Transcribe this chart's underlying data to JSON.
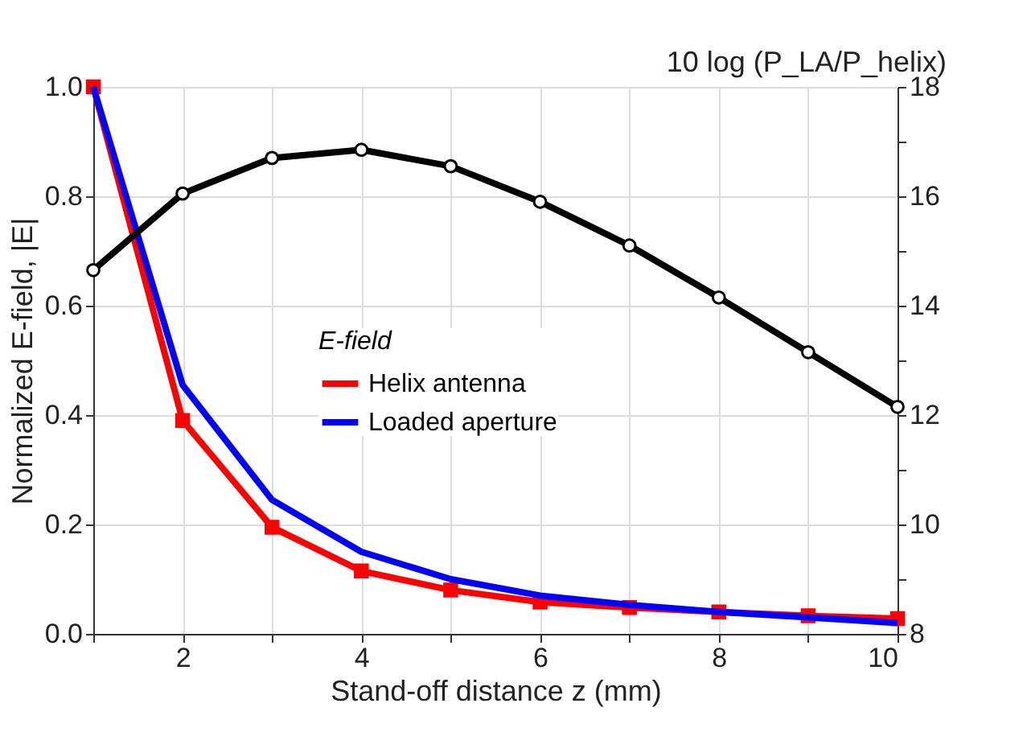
{
  "chart_data": {
    "type": "line",
    "xlabel": "Stand-off distance z (mm)",
    "ylabel": "Normalized E-field, |E|",
    "y2label": "10 log (P_LA/P_helix)",
    "legend_title": "E-field",
    "x": [
      1,
      2,
      3,
      4,
      5,
      6,
      7,
      8,
      9,
      10
    ],
    "series": [
      {
        "name": "Helix antenna",
        "color": "#ff0000",
        "marker": "square",
        "values": [
          1.0,
          0.39,
          0.195,
          0.115,
          0.08,
          0.058,
          0.048,
          0.04,
          0.033,
          0.028
        ]
      },
      {
        "name": "Loaded aperture",
        "color": "#0000ff",
        "marker": "none",
        "values": [
          1.0,
          0.455,
          0.245,
          0.15,
          0.1,
          0.07,
          0.053,
          0.04,
          0.03,
          0.02
        ]
      },
      {
        "color": "#000000",
        "marker": "circle",
        "axis": "y2",
        "values": [
          14.65,
          16.05,
          16.7,
          16.85,
          16.55,
          15.9,
          15.1,
          14.15,
          13.15,
          12.15
        ]
      }
    ],
    "xlim": [
      1,
      10
    ],
    "xticks": [
      {
        "value": 1,
        "label": null
      },
      2,
      {
        "value": 3,
        "label": null
      },
      4,
      {
        "value": 5,
        "label": null
      },
      6,
      {
        "value": 7,
        "label": null
      },
      8,
      {
        "value": 9,
        "label": null
      },
      10
    ],
    "ylim": [
      0,
      1
    ],
    "yticks": [
      {
        "value": 0,
        "label": "0.0"
      },
      {
        "value": 0.1,
        "label": null
      },
      0.2,
      {
        "value": 0.3,
        "label": null
      },
      0.4,
      {
        "value": 0.5,
        "label": null
      },
      0.6,
      {
        "value": 0.7,
        "label": null
      },
      0.8,
      {
        "value": 0.9,
        "label": null
      },
      {
        "value": 1,
        "label": "1.0"
      }
    ],
    "y2lim": [
      8,
      18
    ],
    "y2ticks": [
      8,
      {
        "value": 9,
        "label": null
      },
      10,
      {
        "value": 11,
        "label": null
      },
      12,
      {
        "value": 13,
        "label": null
      },
      14,
      {
        "value": 15,
        "label": null
      },
      16,
      {
        "value": 17,
        "label": null
      },
      18
    ],
    "grid": true,
    "legend": "center",
    "line_style": "solid"
  }
}
